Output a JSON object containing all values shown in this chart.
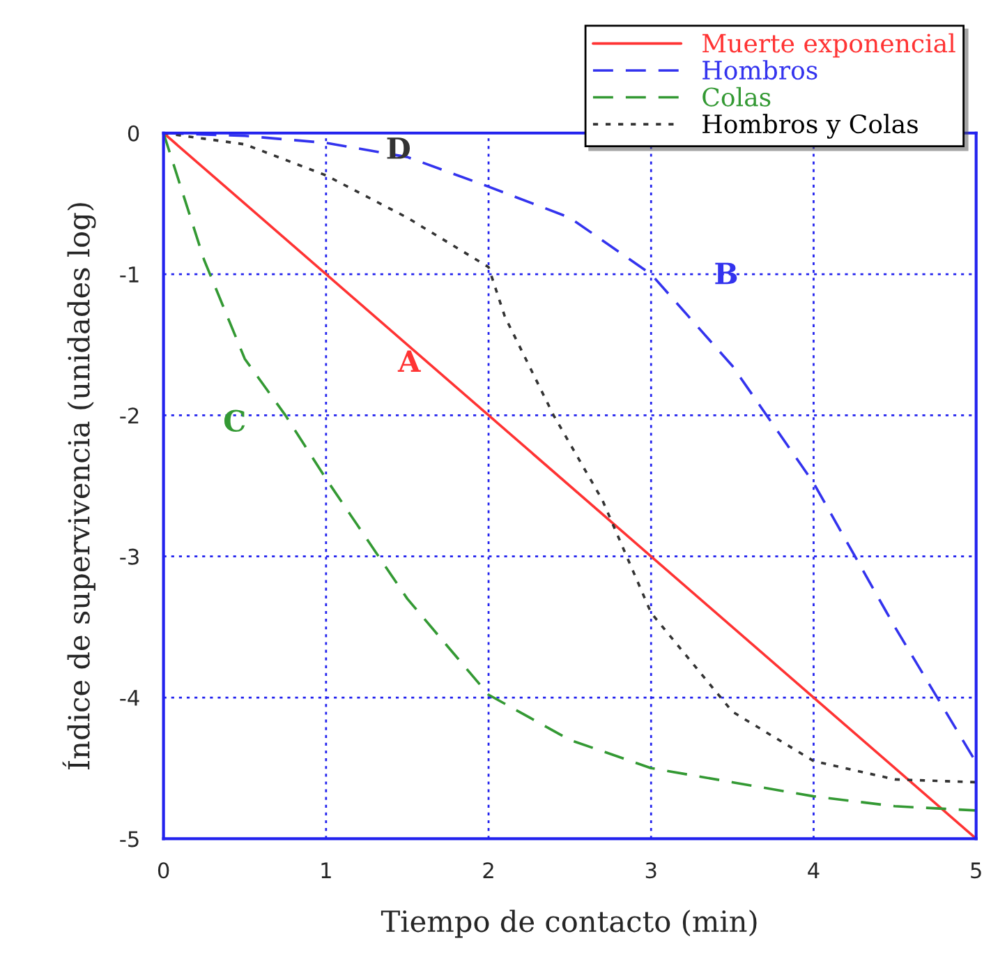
{
  "chart_data": {
    "type": "line",
    "xlabel": "Tiempo de contacto (min)",
    "ylabel": "Índice de supervivencia (unidades log)",
    "xlim": [
      0,
      5
    ],
    "ylim": [
      -5,
      0
    ],
    "xticks": [
      0,
      1,
      2,
      3,
      4,
      5
    ],
    "yticks": [
      {
        "value": 0,
        "label": "0"
      },
      {
        "value": -1,
        "label": "-1"
      },
      {
        "value": -2,
        "label": "-2"
      },
      {
        "value": -3,
        "label": "-3"
      },
      {
        "value": -4,
        "label": "-4"
      },
      {
        "value": -5,
        "label": "-5"
      }
    ],
    "grid": true,
    "legend": "top right",
    "series": [
      {
        "name": "Muerte exponencial",
        "color": "#ff3333",
        "line_style": "solid",
        "x": [
          0,
          5
        ],
        "values": [
          0,
          -5
        ]
      },
      {
        "name": "Hombros",
        "color": "#3333ee",
        "line_style": "dashed",
        "x": [
          0,
          0.5,
          1,
          1.5,
          2,
          2.5,
          3,
          3.5,
          4,
          4.5,
          5
        ],
        "values": [
          0,
          -0.02,
          -0.07,
          -0.17,
          -0.38,
          -0.6,
          -1.0,
          -1.65,
          -2.48,
          -3.5,
          -4.46
        ]
      },
      {
        "name": "Colas",
        "color": "#339933",
        "line_style": "dashed",
        "x": [
          0,
          0.25,
          0.5,
          0.75,
          1,
          1.5,
          2,
          2.5,
          3,
          3.5,
          4,
          4.5,
          5
        ],
        "values": [
          0,
          -0.9,
          -1.6,
          -2.0,
          -2.45,
          -3.3,
          -3.98,
          -4.3,
          -4.5,
          -4.6,
          -4.7,
          -4.77,
          -4.8
        ]
      },
      {
        "name": "Hombros y Colas",
        "color": "#333333",
        "line_style": "dotted",
        "x": [
          0,
          0.5,
          1,
          1.5,
          2,
          2.1,
          2.4,
          2.7,
          3,
          3.5,
          4,
          4.5,
          5
        ],
        "values": [
          0,
          -0.08,
          -0.3,
          -0.6,
          -0.95,
          -1.3,
          -2.0,
          -2.6,
          -3.4,
          -4.1,
          -4.45,
          -4.58,
          -4.6
        ]
      }
    ],
    "annotations": [
      "A",
      "B",
      "C",
      "D"
    ]
  }
}
